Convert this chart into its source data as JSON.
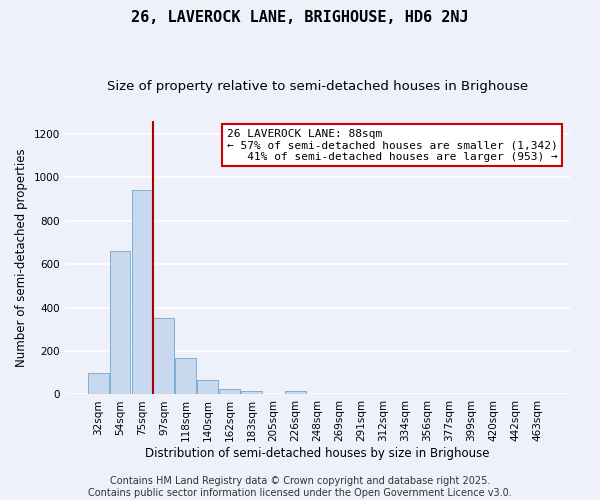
{
  "title": "26, LAVEROCK LANE, BRIGHOUSE, HD6 2NJ",
  "subtitle": "Size of property relative to semi-detached houses in Brighouse",
  "xlabel": "Distribution of semi-detached houses by size in Brighouse",
  "ylabel": "Number of semi-detached properties",
  "footer_line1": "Contains HM Land Registry data © Crown copyright and database right 2025.",
  "footer_line2": "Contains public sector information licensed under the Open Government Licence v3.0.",
  "categories": [
    "32sqm",
    "54sqm",
    "75sqm",
    "97sqm",
    "118sqm",
    "140sqm",
    "162sqm",
    "183sqm",
    "205sqm",
    "226sqm",
    "248sqm",
    "269sqm",
    "291sqm",
    "312sqm",
    "334sqm",
    "356sqm",
    "377sqm",
    "399sqm",
    "420sqm",
    "442sqm",
    "463sqm"
  ],
  "values": [
    100,
    660,
    940,
    350,
    170,
    65,
    25,
    18,
    0,
    15,
    0,
    0,
    0,
    0,
    0,
    0,
    0,
    0,
    0,
    0,
    0
  ],
  "bar_color": "#c8d8ef",
  "bar_edge_color": "#7aafd4",
  "background_color": "#eef1fa",
  "grid_color": "#ffffff",
  "vline_x": 2.5,
  "vline_color": "#aa0000",
  "annotation_line1": "26 LAVEROCK LANE: 88sqm",
  "annotation_line2": "← 57% of semi-detached houses are smaller (1,342)",
  "annotation_line3": "   41% of semi-detached houses are larger (953) →",
  "annotation_box_color": "#ffffff",
  "annotation_box_edge": "#cc0000",
  "ylim": [
    0,
    1260
  ],
  "yticks": [
    0,
    200,
    400,
    600,
    800,
    1000,
    1200
  ],
  "title_fontsize": 11,
  "subtitle_fontsize": 9.5,
  "annotation_fontsize": 8,
  "tick_fontsize": 7.5,
  "axis_label_fontsize": 8.5,
  "footer_fontsize": 7
}
